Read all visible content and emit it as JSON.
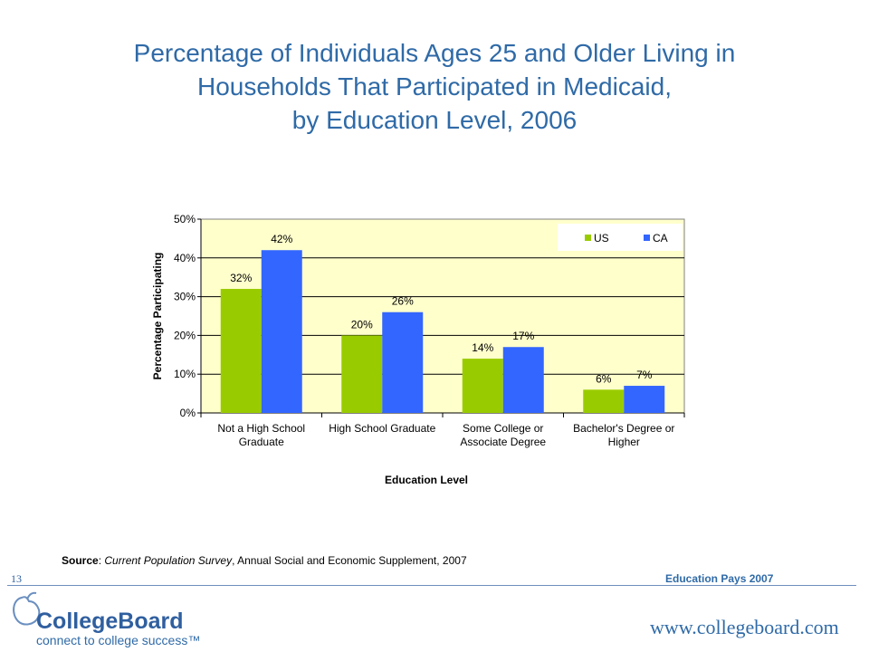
{
  "title": {
    "line1": "Percentage of Individuals Ages 25 and Older Living in",
    "line2": "Households That Participated in Medicaid,",
    "line3": "by Education Level, 2006"
  },
  "chart_data": {
    "type": "bar",
    "categories": [
      [
        "Not a High School",
        "Graduate"
      ],
      [
        "High School Graduate"
      ],
      [
        "Some College or",
        "Associate Degree"
      ],
      [
        "Bachelor's Degree or",
        "Higher"
      ]
    ],
    "series": [
      {
        "name": "US",
        "color": "#99cc00",
        "values": [
          32,
          20,
          14,
          6
        ],
        "labels": [
          "32%",
          "20%",
          "14%",
          "6%"
        ]
      },
      {
        "name": "CA",
        "color": "#3366ff",
        "values": [
          42,
          26,
          17,
          7
        ],
        "labels": [
          "42%",
          "26%",
          "17%",
          "7%"
        ]
      }
    ],
    "xlabel": "Education Level",
    "ylabel": "Percentage Participating",
    "ylim": [
      0,
      50
    ],
    "yticks": [
      "0%",
      "10%",
      "20%",
      "30%",
      "40%",
      "50%"
    ],
    "grid": true,
    "legend_position": "top-right",
    "plot_background": "#ffffcc"
  },
  "source": {
    "label": "Source",
    "separator": ": ",
    "publication": "Current Population Survey",
    "rest": ", Annual Social and Economic Supplement, 2007"
  },
  "footer": {
    "slide_number": "13",
    "right_text": "Education Pays 2007",
    "url": "www.collegeboard.com"
  },
  "logo": {
    "name": "CollegeBoard",
    "tagline": "connect to college success™",
    "icon": "acorn-logo-icon"
  }
}
